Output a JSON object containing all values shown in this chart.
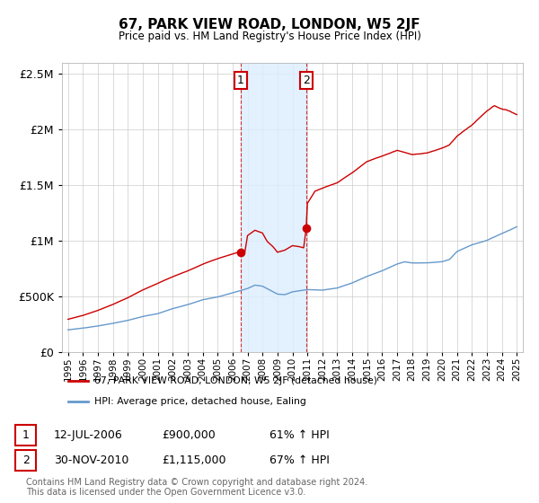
{
  "title": "67, PARK VIEW ROAD, LONDON, W5 2JF",
  "subtitle": "Price paid vs. HM Land Registry's House Price Index (HPI)",
  "sale1_date": "12-JUL-2006",
  "sale1_price": 900000,
  "sale1_pct": "61%",
  "sale2_date": "30-NOV-2010",
  "sale2_price": 1115000,
  "sale2_pct": "67%",
  "legend_red": "67, PARK VIEW ROAD, LONDON, W5 2JF (detached house)",
  "legend_blue": "HPI: Average price, detached house, Ealing",
  "footnote": "Contains HM Land Registry data © Crown copyright and database right 2024.\nThis data is licensed under the Open Government Licence v3.0.",
  "red_color": "#cc0000",
  "blue_color": "#6699cc",
  "shade_color": "#ddeeff",
  "highlight_box_color": "#cc0000",
  "ylim": [
    0,
    2600000
  ],
  "yticks": [
    0,
    500000,
    1000000,
    1500000,
    2000000,
    2500000
  ],
  "x_start_year": 1995,
  "x_end_year": 2025,
  "sale1_year": 2006.54,
  "sale2_year": 2010.92
}
